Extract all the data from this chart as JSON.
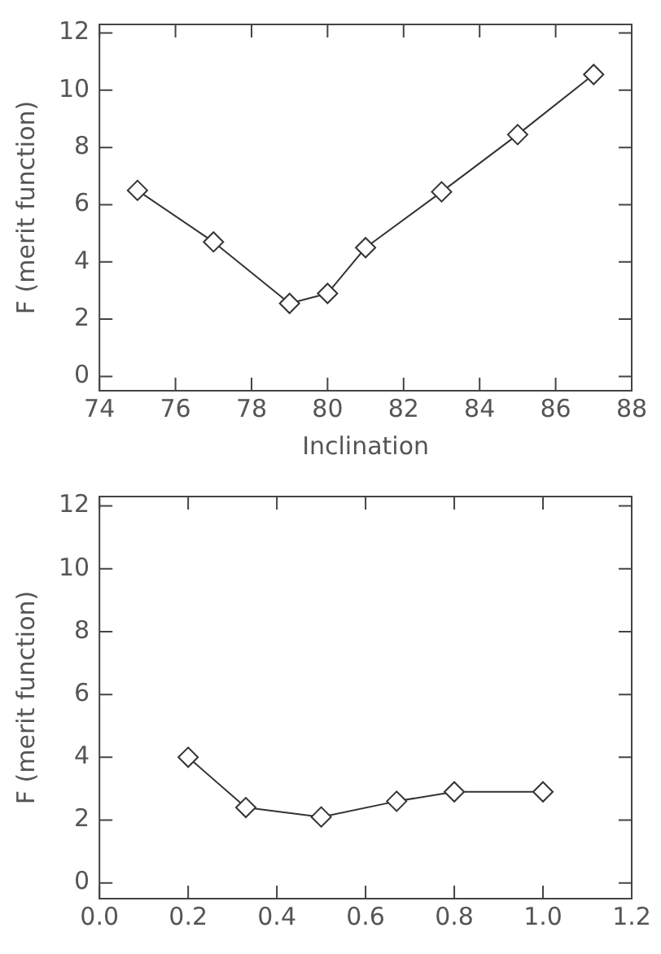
{
  "chart_data": [
    {
      "type": "line",
      "xlabel": "Inclination",
      "ylabel": "F (merit function)",
      "x": [
        75,
        77,
        79,
        80,
        81,
        83,
        85,
        87
      ],
      "values": [
        6.5,
        4.7,
        2.55,
        2.9,
        4.5,
        6.45,
        8.45,
        10.55
      ],
      "color": "#333333",
      "marker": "diamond",
      "line_style": "solid",
      "grid": false,
      "xlim": [
        74,
        88
      ],
      "xticks": [
        74,
        76,
        78,
        80,
        82,
        84,
        86,
        88
      ],
      "ylim": [
        -0.5,
        12.3
      ],
      "yticks": [
        0,
        2,
        4,
        6,
        8,
        10,
        12
      ]
    },
    {
      "type": "line",
      "ylabel": "F (merit function)",
      "x": [
        0.2,
        0.33,
        0.5,
        0.67,
        0.8,
        1.0
      ],
      "values": [
        4.0,
        2.4,
        2.1,
        2.6,
        2.9,
        2.9
      ],
      "color": "#333333",
      "marker": "diamond",
      "line_style": "solid",
      "grid": false,
      "xlim": [
        0,
        1.2
      ],
      "xticks": [
        {
          "value": 0,
          "label": "0.0"
        },
        {
          "value": 0.2,
          "label": "0.2"
        },
        {
          "value": 0.4,
          "label": "0.4"
        },
        {
          "value": 0.6,
          "label": "0.6"
        },
        {
          "value": 0.8,
          "label": "0.8"
        },
        {
          "value": 1.0,
          "label": "1.0"
        },
        {
          "value": 1.2,
          "label": "1.2"
        }
      ],
      "ylim": [
        -0.5,
        12.3
      ],
      "yticks": [
        0,
        2,
        4,
        6,
        8,
        10,
        12
      ]
    }
  ]
}
